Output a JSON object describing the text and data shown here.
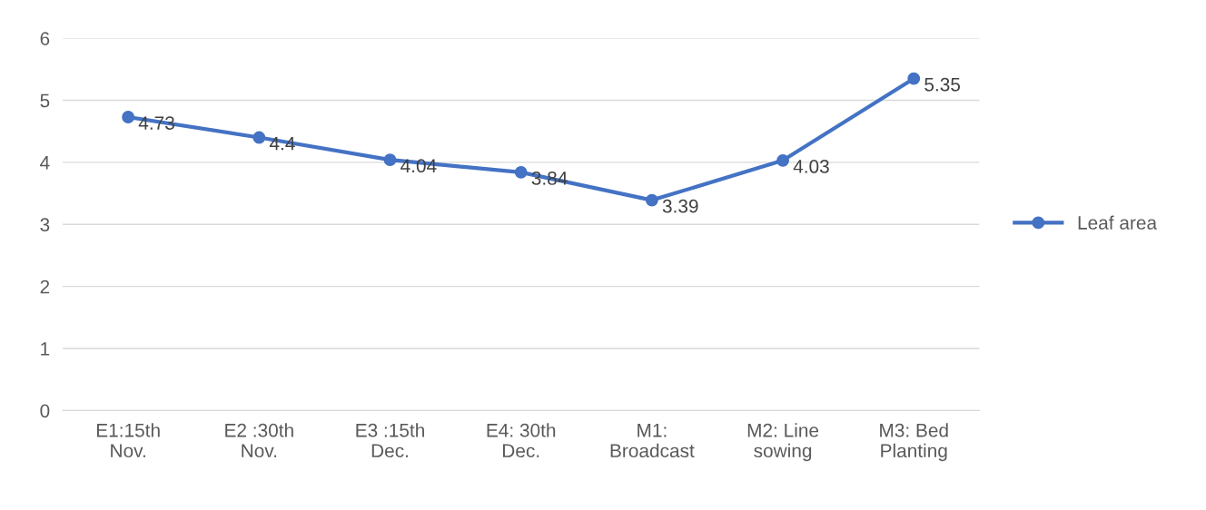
{
  "chart_data": {
    "type": "line",
    "categories": [
      "E1:15th\nNov.",
      "E2 :30th\nNov.",
      "E3 :15th\nDec.",
      "E4: 30th\nDec.",
      "M1:\nBroadcast",
      "M2: Line\nsowing",
      "M3: Bed\nPlanting"
    ],
    "series": [
      {
        "name": "Leaf area",
        "color": "#4472c4",
        "values": [
          4.73,
          4.4,
          4.04,
          3.84,
          3.39,
          4.03,
          5.35
        ]
      }
    ],
    "ylim": [
      0,
      6
    ],
    "yticks": [
      0,
      1,
      2,
      3,
      4,
      5,
      6
    ],
    "grid": "y",
    "legend": "right",
    "marker": "circle",
    "line_style": "solid",
    "data_labels": true
  }
}
